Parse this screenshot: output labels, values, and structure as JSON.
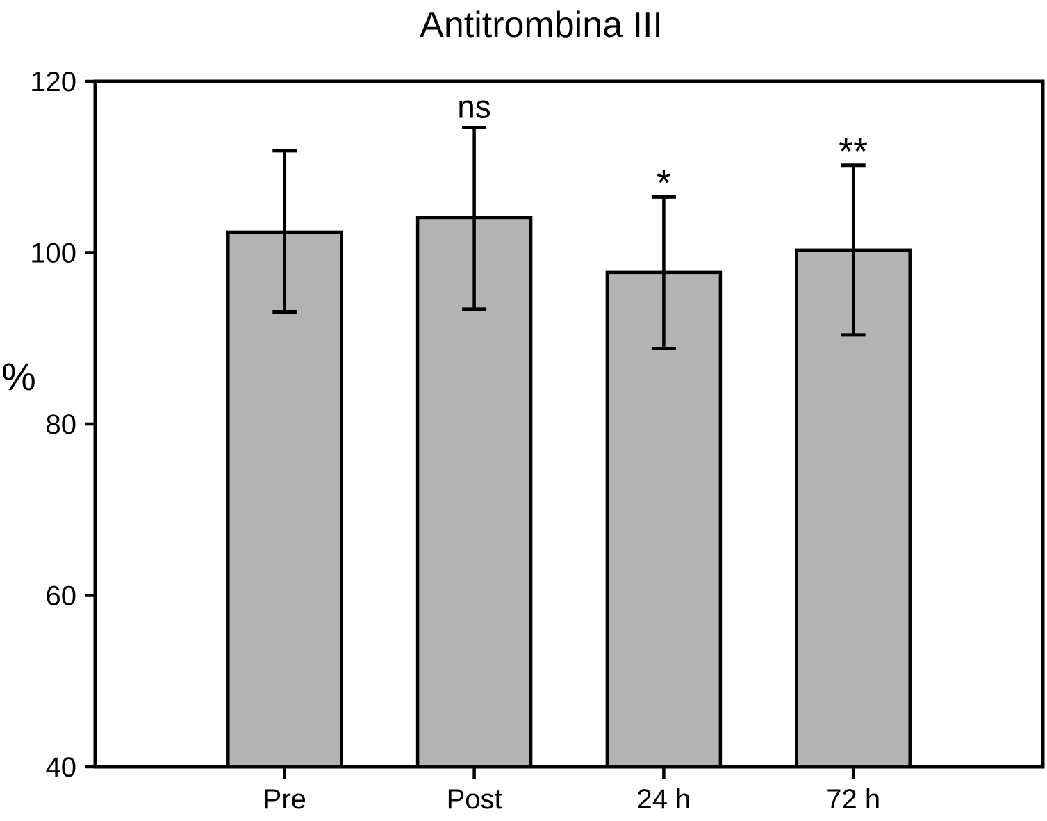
{
  "chart_data": {
    "type": "bar",
    "title": "Antitrombina III",
    "ylabel": "%",
    "xlabel": "",
    "categories": [
      "Pre",
      "Post",
      "24 h",
      "72 h"
    ],
    "values": [
      102.4,
      104.1,
      97.7,
      100.3
    ],
    "error_upper": [
      111.9,
      114.6,
      106.5,
      110.2
    ],
    "error_lower": [
      93.1,
      93.4,
      88.8,
      90.4
    ],
    "annotations": [
      "",
      "ns",
      "*",
      "**"
    ],
    "ylim": [
      40,
      120
    ],
    "y_ticks": [
      40,
      60,
      80,
      100,
      120
    ],
    "grid": false,
    "legend": false,
    "colors": {
      "bar_fill": "#b3b3b3",
      "bar_stroke": "#000000",
      "axis": "#000000",
      "text": "#000000",
      "background": "#ffffff"
    }
  }
}
